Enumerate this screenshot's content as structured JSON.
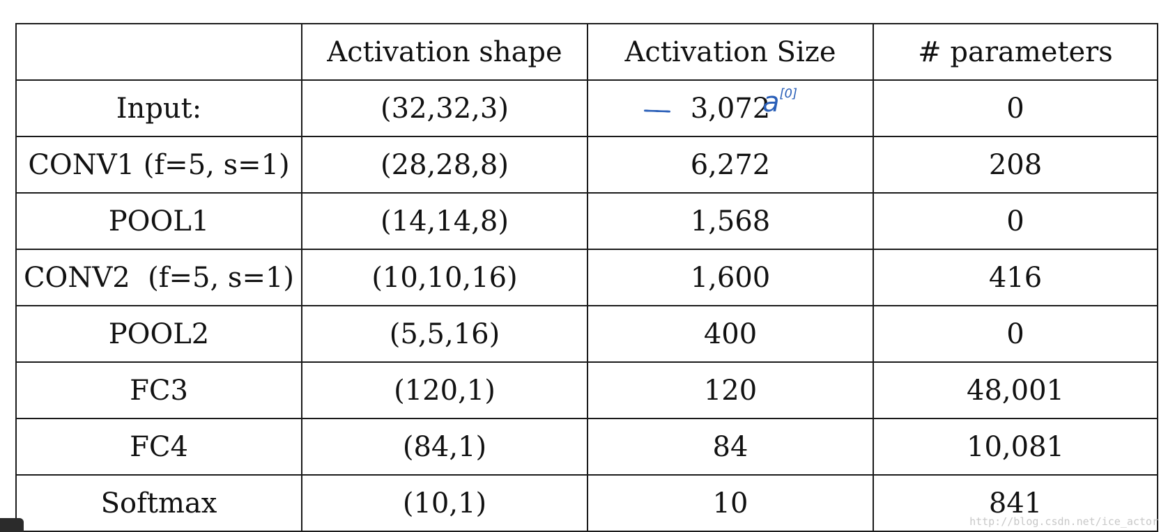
{
  "table": {
    "headers": [
      "",
      "Activation shape",
      "Activation Size",
      "# parameters"
    ],
    "rows": [
      {
        "layer": "Input:",
        "shape": "(32,32,3)",
        "size": "3,072",
        "params": "0"
      },
      {
        "layer": "CONV1 (f=5, s=1)",
        "shape": "(28,28,8)",
        "size": "6,272",
        "params": "208"
      },
      {
        "layer": "POOL1",
        "shape": "(14,14,8)",
        "size": "1,568",
        "params": "0"
      },
      {
        "layer": "CONV2  (f=5, s=1)",
        "shape": "(10,10,16)",
        "size": "1,600",
        "params": "416"
      },
      {
        "layer": "POOL2",
        "shape": "(5,5,16)",
        "size": "400",
        "params": "0"
      },
      {
        "layer": "FC3",
        "shape": "(120,1)",
        "size": "120",
        "params": "48,001"
      },
      {
        "layer": "FC4",
        "shape": "(84,1)",
        "size": "84",
        "params": "10,081"
      },
      {
        "layer": "Softmax",
        "shape": "(10,1)",
        "size": "10",
        "params": "841"
      }
    ]
  },
  "annotation": {
    "base": "a",
    "superscript": "[0]",
    "color": "#2a5fb8"
  },
  "watermark": "http://blog.csdn.net/ice_actor"
}
